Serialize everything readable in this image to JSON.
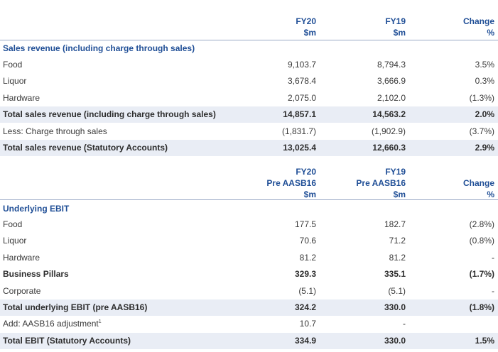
{
  "table1": {
    "header": {
      "fy20": "FY20\n$m",
      "fy19": "FY19\n$m",
      "change": "Change\n%"
    },
    "section": "Sales revenue (including charge through sales)",
    "rows": [
      {
        "label": "Food",
        "fy20": "9,103.7",
        "fy19": "8,794.3",
        "change": "3.5%",
        "style": "normal"
      },
      {
        "label": "Liquor",
        "fy20": "3,678.4",
        "fy19": "3,666.9",
        "change": "0.3%",
        "style": "normal"
      },
      {
        "label": "Hardware",
        "fy20": "2,075.0",
        "fy19": "2,102.0",
        "change": "(1.3%)",
        "style": "normal"
      },
      {
        "label": "Total sales revenue (including charge through sales)",
        "fy20": "14,857.1",
        "fy19": "14,563.2",
        "change": "2.0%",
        "style": "total"
      },
      {
        "label": "Less: Charge through sales",
        "fy20": "(1,831.7)",
        "fy19": "(1,902.9)",
        "change": "(3.7%)",
        "style": "normal"
      },
      {
        "label": "Total sales revenue (Statutory Accounts)",
        "fy20": "13,025.4",
        "fy19": "12,660.3",
        "change": "2.9%",
        "style": "total"
      }
    ]
  },
  "table2": {
    "header": {
      "fy20": "FY20\nPre AASB16\n$m",
      "fy19": "FY19\nPre AASB16\n$m",
      "change": "Change\n%"
    },
    "section": "Underlying EBIT",
    "rows": [
      {
        "label": "Food",
        "fy20": "177.5",
        "fy19": "182.7",
        "change": "(2.8%)",
        "style": "normal"
      },
      {
        "label": "Liquor",
        "fy20": "70.6",
        "fy19": "71.2",
        "change": "(0.8%)",
        "style": "normal"
      },
      {
        "label": "Hardware",
        "fy20": "81.2",
        "fy19": "81.2",
        "change": "-",
        "style": "normal"
      },
      {
        "label": "Business Pillars",
        "fy20": "329.3",
        "fy19": "335.1",
        "change": "(1.7%)",
        "style": "bold"
      },
      {
        "label": "Corporate",
        "fy20": "(5.1)",
        "fy19": "(5.1)",
        "change": "-",
        "style": "normal"
      },
      {
        "label": "Total underlying EBIT (pre AASB16)",
        "fy20": "324.2",
        "fy19": "330.0",
        "change": "(1.8%)",
        "style": "total"
      },
      {
        "label": "Add: AASB16 adjustment",
        "footnote": "1",
        "fy20": "10.7",
        "fy19": "-",
        "change": "",
        "style": "normal"
      },
      {
        "label": "Total EBIT (Statutory Accounts)",
        "fy20": "334.9",
        "fy19": "330.0",
        "change": "1.5%",
        "style": "total"
      }
    ]
  }
}
